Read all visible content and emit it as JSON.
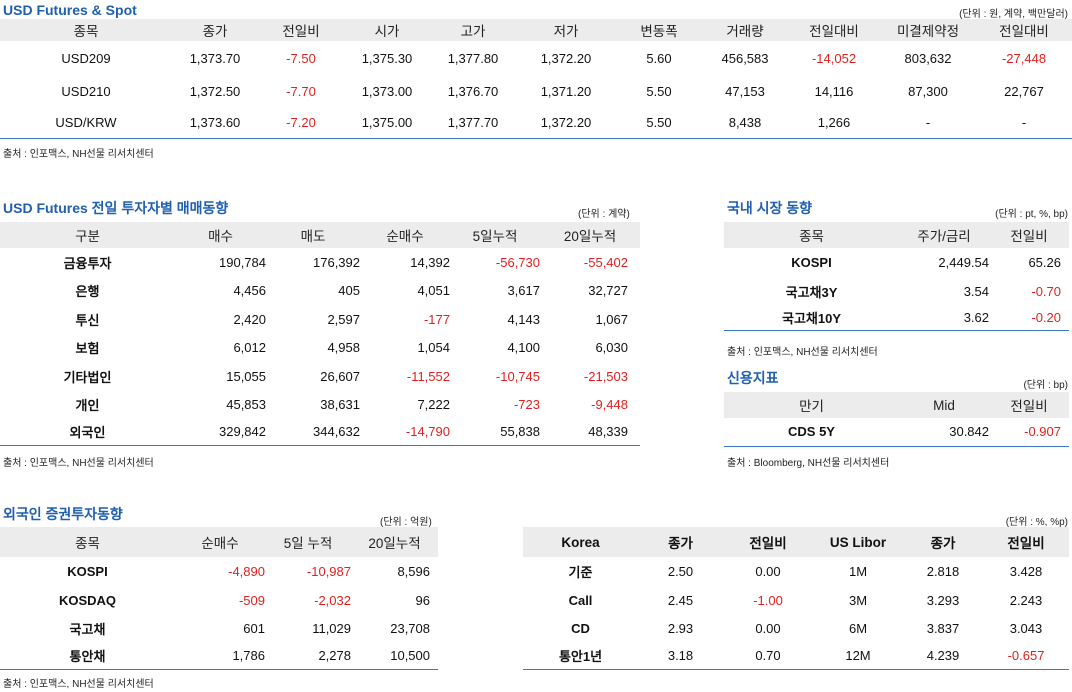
{
  "fut": {
    "title": "USD Futures & Spot",
    "unit": "(단위 : 원, 계약, 백만달러)",
    "headers": [
      "종목",
      "종가",
      "전일비",
      "시가",
      "고가",
      "저가",
      "변동폭",
      "거래량",
      "전일대비",
      "미결제약정",
      "전일대비"
    ],
    "rows": [
      [
        "USD209",
        "1,373.70",
        "-7.50",
        "1,375.30",
        "1,377.80",
        "1,372.20",
        "5.60",
        "456,583",
        "-14,052",
        "803,632",
        "-27,448"
      ],
      [
        "USD210",
        "1,372.50",
        "-7.70",
        "1,373.00",
        "1,376.70",
        "1,371.20",
        "5.50",
        "47,153",
        "14,116",
        "87,300",
        "22,767"
      ],
      [
        "USD/KRW",
        "1,373.60",
        "-7.20",
        "1,375.00",
        "1,377.70",
        "1,372.20",
        "5.50",
        "8,438",
        "1,266",
        "-",
        "-"
      ]
    ],
    "source": "출처 : 인포맥스, NH선물 리서치센터"
  },
  "inv": {
    "title": "USD Futures 전일 투자자별 매매동향",
    "unit": "(단위 : 계약)",
    "headers": [
      "구분",
      "매수",
      "매도",
      "순매수",
      "5일누적",
      "20일누적"
    ],
    "rows": [
      [
        "금융투자",
        "190,784",
        "176,392",
        "14,392",
        "-56,730",
        "-55,402"
      ],
      [
        "은행",
        "4,456",
        "405",
        "4,051",
        "3,617",
        "32,727"
      ],
      [
        "투신",
        "2,420",
        "2,597",
        "-177",
        "4,143",
        "1,067"
      ],
      [
        "보험",
        "6,012",
        "4,958",
        "1,054",
        "4,100",
        "6,030"
      ],
      [
        "기타법인",
        "15,055",
        "26,607",
        "-11,552",
        "-10,745",
        "-21,503"
      ],
      [
        "개인",
        "45,853",
        "38,631",
        "7,222",
        "-723",
        "-9,448"
      ],
      [
        "외국인",
        "329,842",
        "344,632",
        "-14,790",
        "55,838",
        "48,339"
      ]
    ],
    "source": "출처 : 인포맥스, NH선물 리서치센터"
  },
  "dom": {
    "title": "국내 시장 동향",
    "unit": "(단위 : pt, %, bp)",
    "headers": [
      "종목",
      "주가/금리",
      "전일비"
    ],
    "rows": [
      [
        "KOSPI",
        "2,449.54",
        "65.26"
      ],
      [
        "국고채3Y",
        "3.54",
        "-0.70"
      ],
      [
        "국고채10Y",
        "3.62",
        "-0.20"
      ]
    ],
    "source": "출처 : 인포맥스, NH선물 리서치센터"
  },
  "cds": {
    "title": "신용지표",
    "unit": "(단위 : bp)",
    "headers": [
      "만기",
      "Mid",
      "전일비"
    ],
    "rows": [
      [
        "CDS 5Y",
        "30.842",
        "-0.907"
      ]
    ],
    "source": "출처 : Bloomberg, NH선물 리서치센터"
  },
  "frn": {
    "title": "외국인 증권투자동향",
    "unit": "(단위 : 억원)",
    "headers": [
      "종목",
      "순매수",
      "5일 누적",
      "20일누적"
    ],
    "rows": [
      [
        "KOSPI",
        "-4,890",
        "-10,987",
        "8,596"
      ],
      [
        "KOSDAQ",
        "-509",
        "-2,032",
        "96"
      ],
      [
        "국고채",
        "601",
        "11,029",
        "23,708"
      ],
      [
        "통안채",
        "1,786",
        "2,278",
        "10,500"
      ]
    ],
    "source": "출처 : 인포맥스, NH선물 리서치센터"
  },
  "rates": {
    "unit": "(단위 : %, %p)",
    "headers": [
      "Korea",
      "종가",
      "전일비",
      "US Libor",
      "종가",
      "전일비"
    ],
    "rows": [
      [
        "기준",
        "2.50",
        "0.00",
        "1M",
        "2.818",
        "3.428"
      ],
      [
        "Call",
        "2.45",
        "-1.00",
        "3M",
        "3.293",
        "2.243"
      ],
      [
        "CD",
        "2.93",
        "0.00",
        "6M",
        "3.837",
        "3.043"
      ],
      [
        "통안1년",
        "3.18",
        "0.70",
        "12M",
        "4.239",
        "-0.657"
      ]
    ]
  }
}
